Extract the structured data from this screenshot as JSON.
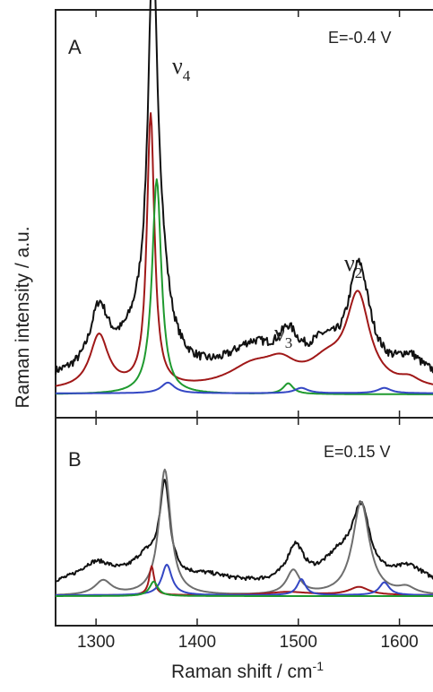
{
  "chart_data": {
    "type": "line",
    "xlabel": "Raman shift  /  cm",
    "xlabel_sup": "-1",
    "ylabel": "Raman intensity  /  a.u.",
    "xlim": [
      1260,
      1650
    ],
    "x_ticks": [
      1300,
      1400,
      1500,
      1600
    ],
    "x_tick_labels": [
      "1300",
      "1400",
      "1500",
      "1600"
    ],
    "colors": {
      "measured": "#111111",
      "red": "#a01818",
      "green": "#1f9a2f",
      "blue": "#3447c4",
      "gray": "#6e6e6e"
    },
    "panels": [
      {
        "letter": "A",
        "potential": "E=-0.4 V",
        "ylim": [
          0,
          1
        ],
        "peaks": [
          {
            "name": "ν",
            "sub": "4",
            "x": 1357
          },
          {
            "name": "ν",
            "sub": "3",
            "x": 1490
          },
          {
            "name": "ν",
            "sub": "2",
            "x": 1560
          }
        ],
        "series": [
          {
            "role": "measured",
            "color": "measured",
            "baseline": 0.04,
            "noise": 0.012,
            "components": [
              [
                1303,
                11,
                0.17
              ],
              [
                1356,
                5.5,
                0.95
              ],
              [
                1362,
                11,
                0.22
              ],
              [
                1343,
                25,
                0.1
              ],
              [
                1455,
                28,
                0.08
              ],
              [
                1490,
                12,
                0.09
              ],
              [
                1525,
                18,
                0.07
              ],
              [
                1560,
                13,
                0.3
              ],
              [
                1610,
                15,
                0.05
              ]
            ]
          },
          {
            "role": "red",
            "color": "red",
            "baseline": 0.01,
            "noise": 0,
            "components": [
              [
                1303,
                11,
                0.15
              ],
              [
                1354,
                4.5,
                0.76
              ],
              [
                1455,
                30,
                0.06
              ],
              [
                1483,
                18,
                0.05
              ],
              [
                1528,
                22,
                0.06
              ],
              [
                1559,
                14,
                0.25
              ],
              [
                1610,
                12,
                0.02
              ]
            ]
          },
          {
            "role": "green",
            "color": "green",
            "baseline": 0.0,
            "noise": 0,
            "components": [
              [
                1360,
                5.5,
                0.6
              ],
              [
                1490,
                6,
                0.03
              ]
            ]
          },
          {
            "role": "blue",
            "color": "blue",
            "baseline": 0.003,
            "noise": 0,
            "components": [
              [
                1371,
                8,
                0.03
              ],
              [
                1503,
                8,
                0.015
              ],
              [
                1585,
                8,
                0.015
              ]
            ]
          }
        ]
      },
      {
        "letter": "B",
        "potential": "E=0.15 V",
        "ylim": [
          0,
          1
        ],
        "peaks": [],
        "series": [
          {
            "role": "measured",
            "color": "measured",
            "baseline": 0.06,
            "noise": 0.012,
            "components": [
              [
                1300,
                22,
                0.13
              ],
              [
                1350,
                18,
                0.15
              ],
              [
                1368,
                6,
                0.55
              ],
              [
                1410,
                30,
                0.05
              ],
              [
                1497,
                10,
                0.22
              ],
              [
                1540,
                20,
                0.15
              ],
              [
                1562,
                11,
                0.43
              ],
              [
                1610,
                18,
                0.1
              ]
            ]
          },
          {
            "role": "gray",
            "color": "gray",
            "baseline": 0.0,
            "noise": 0,
            "components": [
              [
                1307,
                10,
                0.09
              ],
              [
                1368,
                7,
                0.78
              ],
              [
                1495,
                8,
                0.15
              ],
              [
                1562,
                10,
                0.58
              ],
              [
                1607,
                10,
                0.04
              ]
            ]
          },
          {
            "role": "red",
            "color": "red",
            "baseline": 0.005,
            "noise": 0,
            "components": [
              [
                1355,
                3,
                0.18
              ],
              [
                1490,
                25,
                0.02
              ],
              [
                1560,
                12,
                0.05
              ]
            ]
          },
          {
            "role": "blue",
            "color": "blue",
            "baseline": 0.005,
            "noise": 0,
            "components": [
              [
                1370,
                6,
                0.19
              ],
              [
                1503,
                5,
                0.1
              ],
              [
                1585,
                6,
                0.08
              ]
            ]
          },
          {
            "role": "green",
            "color": "green",
            "baseline": 0.0,
            "noise": 0,
            "components": [
              [
                1357,
                5,
                0.09
              ]
            ]
          }
        ]
      }
    ]
  }
}
